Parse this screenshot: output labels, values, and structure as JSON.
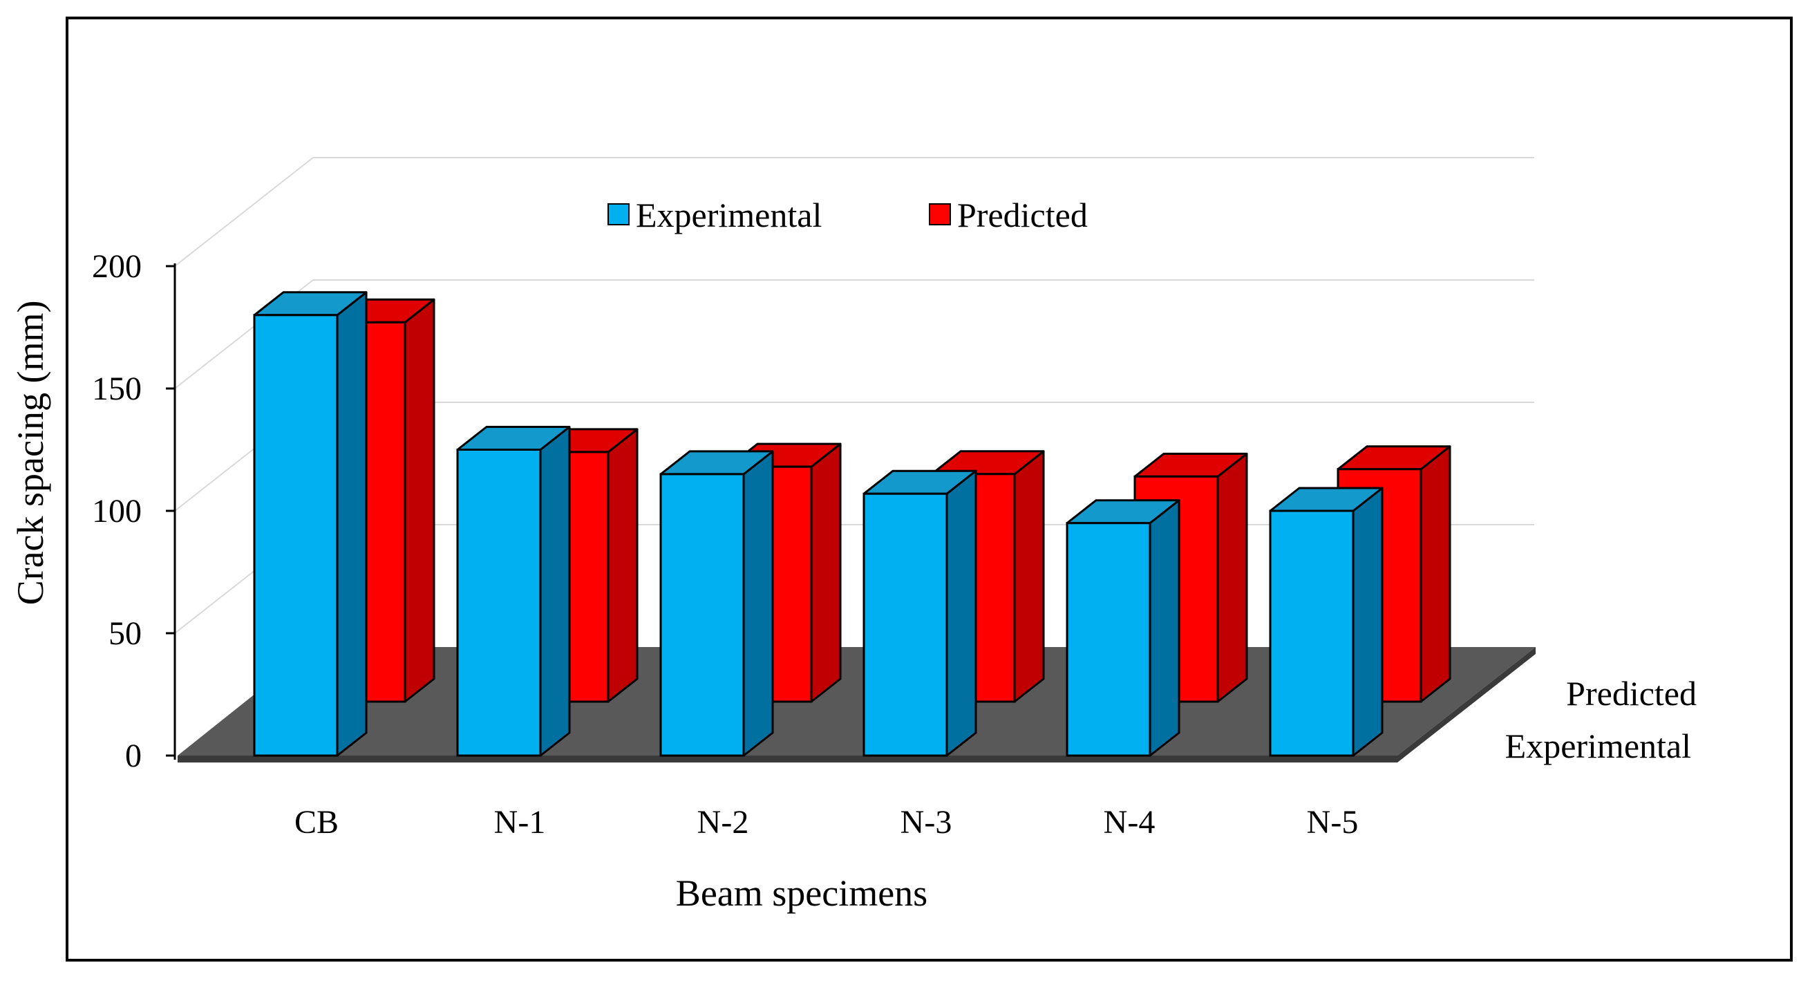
{
  "chart_data": {
    "type": "bar",
    "style": "3d-clustered-column",
    "title": "",
    "xlabel": "Beam specimens",
    "ylabel": "Crack spacing (mm)",
    "ylim": [
      0,
      200
    ],
    "yticks": [
      0,
      50,
      100,
      150,
      200
    ],
    "grid": true,
    "legend_position": "top",
    "categories": [
      "CB",
      "N-1",
      "N-2",
      "N-3",
      "N-4",
      "N-5"
    ],
    "series": [
      {
        "name": "Experimental",
        "values": [
          180,
          125,
          115,
          107,
          95,
          100
        ]
      },
      {
        "name": "Predicted",
        "values": [
          155,
          102,
          96,
          93,
          92,
          95
        ]
      }
    ],
    "depth_labels": [
      "Experimental",
      "Predicted"
    ],
    "colors": {
      "Experimental": {
        "front": "#00B0F0",
        "side": "#0070A0",
        "top": "#1399CC"
      },
      "Predicted": {
        "front": "#FF0000",
        "side": "#C00000",
        "top": "#E00000"
      },
      "floor": "#595959",
      "grid": "#D9D9D9"
    }
  }
}
